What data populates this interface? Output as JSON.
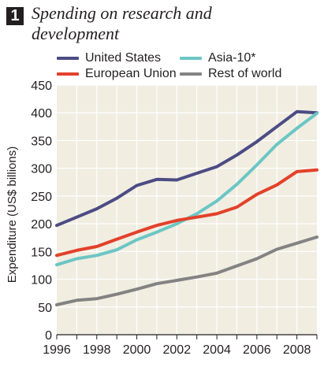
{
  "figure": {
    "number": "1",
    "title": "Spending on research and development"
  },
  "colors": {
    "plot_background": "#f1ede1",
    "grid": "#ffffff",
    "axis": "#231f20",
    "text": "#231f20"
  },
  "chart_data": {
    "type": "line",
    "title": "Spending on research and development",
    "xlabel": "",
    "ylabel": "Expenditure (US$ billions)",
    "xlim": [
      1996,
      2009
    ],
    "ylim": [
      0,
      450
    ],
    "x_ticks": [
      "1996",
      "1998",
      "2000",
      "2002",
      "2004",
      "2006",
      "2008"
    ],
    "y_ticks": [
      "0",
      "50",
      "100",
      "150",
      "200",
      "250",
      "300",
      "350",
      "400",
      "450"
    ],
    "grid": true,
    "legend_position": "top",
    "x": [
      1996,
      1997,
      1998,
      1999,
      2000,
      2001,
      2002,
      2003,
      2004,
      2005,
      2006,
      2007,
      2008,
      2009
    ],
    "series": [
      {
        "name": "United States",
        "color": "#4c4c84",
        "values": [
          197,
          212,
          227,
          246,
          269,
          280,
          279,
          291,
          303,
          324,
          348,
          375,
          402,
          400
        ]
      },
      {
        "name": "Asia-10*",
        "color": "#6cc6c4",
        "values": [
          126,
          137,
          143,
          153,
          171,
          185,
          200,
          218,
          241,
          271,
          306,
          343,
          372,
          399
        ]
      },
      {
        "name": "European Union",
        "color": "#e2412a",
        "values": [
          143,
          152,
          159,
          172,
          185,
          197,
          206,
          212,
          218,
          230,
          253,
          270,
          294,
          297
        ]
      },
      {
        "name": "Rest of world",
        "color": "#838383",
        "values": [
          54,
          62,
          65,
          73,
          82,
          92,
          98,
          104,
          111,
          124,
          137,
          154,
          165,
          176
        ]
      }
    ]
  }
}
